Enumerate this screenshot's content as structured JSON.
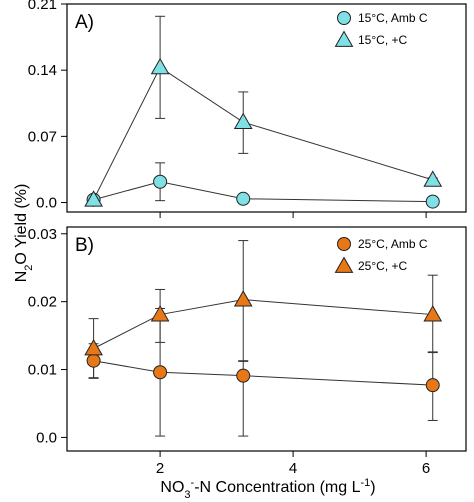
{
  "figure": {
    "shared_ylabel": "N2O Yield (%)",
    "shared_xlabel": "NO3--N Concentration (mg L-1)"
  },
  "chart_data": [
    {
      "type": "scatter",
      "panel_label": "A)",
      "xlabel": "",
      "ylabel": "N2O Yield (%)",
      "xlim": [
        0.6,
        6.6
      ],
      "ylim": [
        -0.01,
        0.21
      ],
      "xticks": [
        2,
        4,
        6
      ],
      "xtick_labels": [],
      "yticks": [
        0,
        0.07,
        0.14,
        0.21
      ],
      "ytick_labels": [
        "0.0",
        "0.07",
        "0.14",
        "0.21"
      ],
      "grid": false,
      "legend_position": "top-right",
      "series": [
        {
          "name": "15°C, Amb C",
          "marker": "circle",
          "color": "#7fe0e6",
          "x": [
            1.0,
            2.0,
            3.25,
            6.1
          ],
          "y": [
            0.003,
            0.022,
            0.004,
            0.001
          ],
          "err_low": [
            0.001,
            0.02,
            0.002,
            0.001
          ],
          "err_high": [
            0.001,
            0.02,
            0.002,
            0.001
          ]
        },
        {
          "name": "15°C, +C",
          "marker": "triangle",
          "color": "#7fe0e6",
          "x": [
            1.0,
            2.0,
            3.25,
            6.1
          ],
          "y": [
            0.003,
            0.143,
            0.085,
            0.024
          ],
          "err_low": [
            0.001,
            0.054,
            0.033,
            0.002
          ],
          "err_high": [
            0.001,
            0.054,
            0.032,
            0.002
          ]
        }
      ]
    },
    {
      "type": "scatter",
      "panel_label": "B)",
      "xlabel": "NO3--N Concentration (mg L-1)",
      "ylabel": "N2O Yield (%)",
      "xlim": [
        0.6,
        6.6
      ],
      "ylim": [
        -0.002,
        0.031
      ],
      "xticks": [
        2,
        4,
        6
      ],
      "xtick_labels": [
        "2",
        "4",
        "6"
      ],
      "yticks": [
        0,
        0.01,
        0.02,
        0.03
      ],
      "ytick_labels": [
        "0.0",
        "0.01",
        "0.02",
        "0.03"
      ],
      "grid": false,
      "legend_position": "top-right",
      "series": [
        {
          "name": "25°C, Amb C",
          "marker": "circle",
          "color": "#e87817",
          "x": [
            1.0,
            2.0,
            3.25,
            6.1
          ],
          "y": [
            0.0113,
            0.0096,
            0.0091,
            0.0077
          ],
          "err_low": [
            0.0025,
            0.0094,
            0.0089,
            0.0052
          ],
          "err_high": [
            0.0025,
            0.0094,
            0.0022,
            0.0048
          ]
        },
        {
          "name": "25°C, +C",
          "marker": "triangle",
          "color": "#e87817",
          "x": [
            1.0,
            2.0,
            3.25,
            6.1
          ],
          "y": [
            0.0131,
            0.0181,
            0.0203,
            0.0181
          ],
          "err_low": [
            0.0044,
            0.0041,
            0.0091,
            0.0055
          ],
          "err_high": [
            0.0044,
            0.0037,
            0.0087,
            0.0058
          ]
        }
      ]
    }
  ]
}
